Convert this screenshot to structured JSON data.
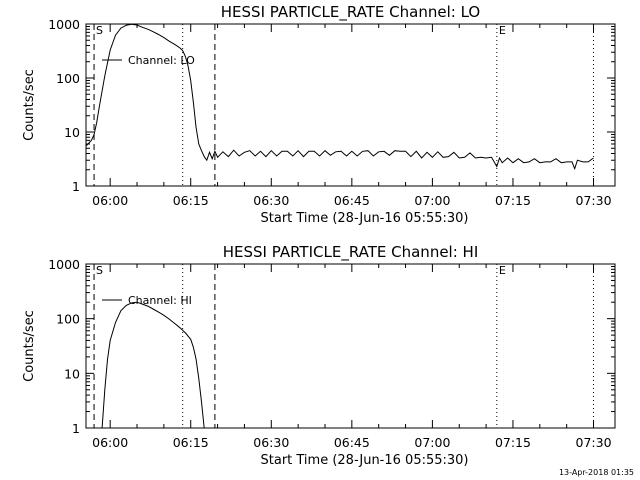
{
  "footer": "13-Apr-2018 01:35",
  "chart_data": [
    {
      "type": "line",
      "title": "HESSI PARTICLE_RATE Channel: LO",
      "xlabel": "Start Time (28-Jun-16 05:55:30)",
      "ylabel": "Counts/sec",
      "yscale": "log",
      "ylim": [
        1,
        1000
      ],
      "xlim": [
        "05:55:30",
        "07:34:00"
      ],
      "x_ticks": [
        "06:00",
        "06:15",
        "06:30",
        "06:45",
        "07:00",
        "07:15",
        "07:30"
      ],
      "y_ticks": [
        "1",
        "10",
        "100",
        "1000"
      ],
      "legend": {
        "label": "Channel: LO",
        "placement": "top-left"
      },
      "markers": [
        {
          "time": "05:57:00",
          "style": "dashed",
          "label": "S"
        },
        {
          "time": "06:13:30",
          "style": "dotted",
          "label": ""
        },
        {
          "time": "06:19:30",
          "style": "dashed",
          "label": ""
        },
        {
          "time": "07:12:00",
          "style": "dotted",
          "label": "E"
        },
        {
          "time": "07:30:00",
          "style": "dotted",
          "label": ""
        }
      ],
      "series": [
        {
          "points": [
            [
              "05:55:30",
              5.5
            ],
            [
              "05:56:30",
              7
            ],
            [
              "05:57:00",
              9
            ],
            [
              "05:57:30",
              15
            ],
            [
              "05:58:00",
              30
            ],
            [
              "05:59:00",
              110
            ],
            [
              "06:00:00",
              330
            ],
            [
              "06:01:00",
              620
            ],
            [
              "06:02:00",
              840
            ],
            [
              "06:03:00",
              950
            ],
            [
              "06:04:00",
              990
            ],
            [
              "06:05:00",
              960
            ],
            [
              "06:06:00",
              870
            ],
            [
              "06:07:00",
              800
            ],
            [
              "06:08:00",
              720
            ],
            [
              "06:09:00",
              640
            ],
            [
              "06:10:00",
              560
            ],
            [
              "06:11:00",
              480
            ],
            [
              "06:12:00",
              420
            ],
            [
              "06:13:00",
              360
            ],
            [
              "06:13:30",
              320
            ],
            [
              "06:14:00",
              250
            ],
            [
              "06:14:30",
              170
            ],
            [
              "06:15:00",
              90
            ],
            [
              "06:15:30",
              35
            ],
            [
              "06:16:00",
              12
            ],
            [
              "06:16:30",
              6
            ],
            [
              "06:17:00",
              4.5
            ],
            [
              "06:17:30",
              3.5
            ],
            [
              "06:18:00",
              3
            ],
            [
              "06:18:30",
              4.2
            ],
            [
              "06:19:00",
              3.2
            ],
            [
              "06:19:30",
              4.4
            ],
            [
              "06:20:00",
              3.4
            ],
            [
              "06:21:00",
              4.3
            ],
            [
              "06:22:00",
              3.5
            ],
            [
              "06:23:00",
              4.6
            ],
            [
              "06:24:00",
              3.6
            ],
            [
              "06:25:00",
              4.2
            ],
            [
              "06:26:00",
              4.5
            ],
            [
              "06:27:00",
              3.6
            ],
            [
              "06:28:00",
              4.4
            ],
            [
              "06:29:00",
              3.5
            ],
            [
              "06:30:00",
              4.5
            ],
            [
              "06:31:00",
              3.6
            ],
            [
              "06:32:00",
              4.4
            ],
            [
              "06:33:00",
              4.4
            ],
            [
              "06:34:00",
              3.6
            ],
            [
              "06:35:00",
              4.5
            ],
            [
              "06:36:00",
              3.5
            ],
            [
              "06:37:00",
              4.4
            ],
            [
              "06:38:00",
              4.4
            ],
            [
              "06:39:00",
              3.6
            ],
            [
              "06:40:00",
              4.5
            ],
            [
              "06:41:00",
              3.7
            ],
            [
              "06:42:00",
              4.3
            ],
            [
              "06:43:00",
              4.4
            ],
            [
              "06:44:00",
              3.6
            ],
            [
              "06:45:00",
              4.4
            ],
            [
              "06:46:00",
              3.6
            ],
            [
              "06:47:00",
              4.4
            ],
            [
              "06:48:00",
              4.5
            ],
            [
              "06:49:00",
              3.6
            ],
            [
              "06:50:00",
              4.3
            ],
            [
              "06:51:00",
              4.4
            ],
            [
              "06:52:00",
              3.7
            ],
            [
              "06:53:00",
              4.5
            ],
            [
              "06:54:00",
              4.4
            ],
            [
              "06:55:00",
              4.4
            ],
            [
              "06:56:00",
              3.5
            ],
            [
              "06:57:00",
              4.4
            ],
            [
              "06:58:00",
              3.3
            ],
            [
              "06:59:00",
              4.2
            ],
            [
              "07:00:00",
              3.4
            ],
            [
              "07:01:00",
              4.3
            ],
            [
              "07:02:00",
              3.4
            ],
            [
              "07:03:00",
              3.5
            ],
            [
              "07:04:00",
              4.2
            ],
            [
              "07:05:00",
              3.3
            ],
            [
              "07:06:00",
              3.4
            ],
            [
              "07:07:00",
              4.1
            ],
            [
              "07:08:00",
              3.3
            ],
            [
              "07:09:00",
              3.4
            ],
            [
              "07:10:00",
              3.3
            ],
            [
              "07:11:00",
              3.4
            ],
            [
              "07:12:00",
              2.3
            ],
            [
              "07:12:30",
              3.3
            ],
            [
              "07:13:00",
              2.7
            ],
            [
              "07:14:00",
              3.3
            ],
            [
              "07:15:00",
              2.7
            ],
            [
              "07:16:00",
              3.2
            ],
            [
              "07:17:00",
              2.7
            ],
            [
              "07:18:00",
              2.8
            ],
            [
              "07:19:00",
              3.2
            ],
            [
              "07:20:00",
              2.7
            ],
            [
              "07:21:00",
              2.8
            ],
            [
              "07:22:00",
              2.8
            ],
            [
              "07:23:00",
              3.2
            ],
            [
              "07:24:00",
              2.7
            ],
            [
              "07:25:00",
              2.8
            ],
            [
              "07:26:00",
              2.8
            ],
            [
              "07:26:30",
              2.1
            ],
            [
              "07:27:00",
              3.0
            ],
            [
              "07:28:00",
              2.8
            ],
            [
              "07:29:00",
              2.8
            ],
            [
              "07:30:00",
              3.3
            ]
          ]
        }
      ]
    },
    {
      "type": "line",
      "title": "HESSI PARTICLE_RATE Channel: HI",
      "xlabel": "Start Time (28-Jun-16 05:55:30)",
      "ylabel": "Counts/sec",
      "yscale": "log",
      "ylim": [
        1,
        1000
      ],
      "xlim": [
        "05:55:30",
        "07:34:00"
      ],
      "x_ticks": [
        "06:00",
        "06:15",
        "06:30",
        "06:45",
        "07:00",
        "07:15",
        "07:30"
      ],
      "y_ticks": [
        "1",
        "10",
        "100",
        "1000"
      ],
      "legend": {
        "label": "Channel: HI",
        "placement": "top-left"
      },
      "markers": [
        {
          "time": "05:57:00",
          "style": "dashed",
          "label": "S"
        },
        {
          "time": "06:13:30",
          "style": "dotted",
          "label": ""
        },
        {
          "time": "06:19:30",
          "style": "dashed",
          "label": ""
        },
        {
          "time": "07:12:00",
          "style": "dotted",
          "label": "E"
        },
        {
          "time": "07:30:00",
          "style": "dotted",
          "label": ""
        }
      ],
      "series": [
        {
          "points": [
            [
              "05:58:30",
              1
            ],
            [
              "05:59:00",
              5
            ],
            [
              "05:59:30",
              18
            ],
            [
              "06:00:00",
              40
            ],
            [
              "06:01:00",
              85
            ],
            [
              "06:02:00",
              140
            ],
            [
              "06:03:00",
              175
            ],
            [
              "06:04:00",
              195
            ],
            [
              "06:05:00",
              200
            ],
            [
              "06:06:00",
              185
            ],
            [
              "06:07:00",
              170
            ],
            [
              "06:08:00",
              150
            ],
            [
              "06:09:00",
              132
            ],
            [
              "06:10:00",
              115
            ],
            [
              "06:11:00",
              98
            ],
            [
              "06:12:00",
              82
            ],
            [
              "06:13:00",
              68
            ],
            [
              "06:14:00",
              55
            ],
            [
              "06:15:00",
              42
            ],
            [
              "06:15:30",
              30
            ],
            [
              "06:16:00",
              18
            ],
            [
              "06:16:30",
              8
            ],
            [
              "06:17:00",
              3
            ],
            [
              "06:17:30",
              1
            ]
          ]
        }
      ]
    }
  ]
}
